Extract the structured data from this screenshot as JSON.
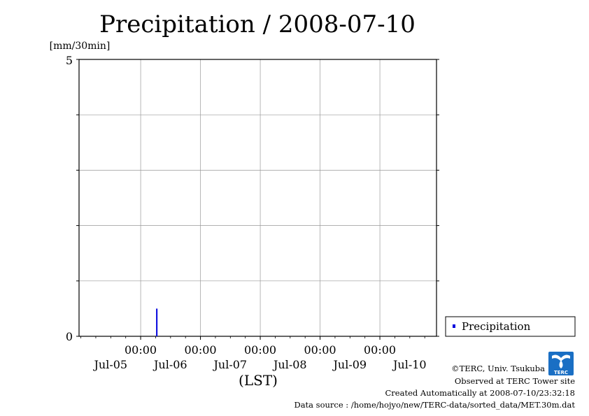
{
  "chart_data": {
    "type": "bar",
    "title": "Precipitation / 2008-07-10",
    "ylabel": "[mm/30min]",
    "xlabel": "(LST)",
    "ylim": [
      0,
      5
    ],
    "y_ticks": [
      "0",
      "5"
    ],
    "x_tick_times": [
      "00:00",
      "00:00",
      "00:00",
      "00:00",
      "00:00"
    ],
    "x_tick_dates": [
      "Jul-05",
      "Jul-06",
      "Jul-07",
      "Jul-08",
      "Jul-09",
      "Jul-10"
    ],
    "x_range_days": [
      0,
      6
    ],
    "grid": true,
    "legend_position": "right",
    "series": [
      {
        "name": "Precipitation",
        "color": "#0000dd",
        "points": [
          {
            "day": 2.27,
            "value": 0.5
          }
        ]
      }
    ]
  },
  "footer": {
    "copyright": "©TERC, Univ. Tsukuba",
    "site": "Observed at TERC Tower site",
    "created": "Created Automatically at 2008-07-10/23:32:18",
    "source": "Data source : /home/hojyo/new/TERC-data/sorted_data/MET.30m.dat"
  },
  "logo": {
    "text": "TERC",
    "color": "#1a6fc4"
  }
}
